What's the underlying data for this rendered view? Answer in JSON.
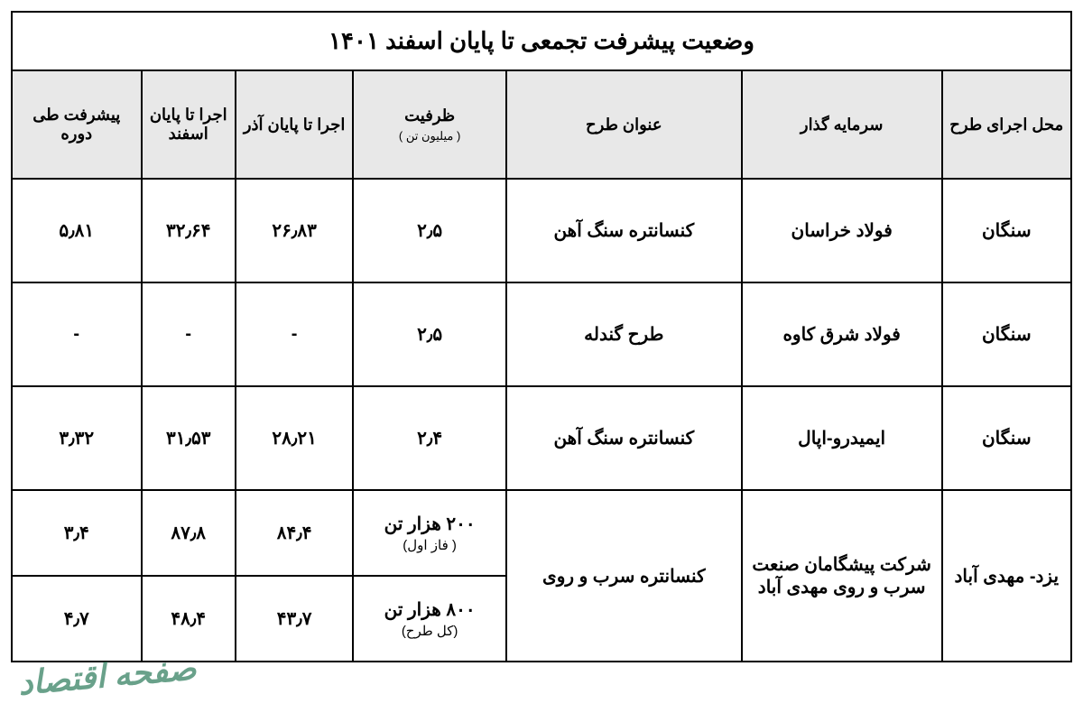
{
  "table": {
    "title": "وضعیت پیشرفت تجمعی تا پایان اسفند ۱۴۰۱",
    "headers": {
      "col1": "محل اجرای طرح",
      "col2": "سرمایه گذار",
      "col3": "عنوان طرح",
      "col4_main": "ظرفیت",
      "col4_sub": "( میلیون تن )",
      "col5": "اجرا تا پایان آذر",
      "col6": "اجرا تا پایان اسفند",
      "col7": "پیشرفت طی دوره"
    },
    "rows": [
      {
        "location": "سنگان",
        "investor": "فولاد خراسان",
        "project": "کنسانتره سنگ آهن",
        "capacity": "۲٫۵",
        "capacity_sub": "",
        "exec_azar": "۲۶٫۸۳",
        "exec_esfand": "۳۲٫۶۴",
        "progress": "۵٫۸۱"
      },
      {
        "location": "سنگان",
        "investor": "فولاد شرق کاوه",
        "project": "طرح گندله",
        "capacity": "۲٫۵",
        "capacity_sub": "",
        "exec_azar": "-",
        "exec_esfand": "-",
        "progress": "-"
      },
      {
        "location": "سنگان",
        "investor": "ایمیدرو-اپال",
        "project": "کنسانتره سنگ آهن",
        "capacity": "۲٫۴",
        "capacity_sub": "",
        "exec_azar": "۲۸٫۲۱",
        "exec_esfand": "۳۱٫۵۳",
        "progress": "۳٫۳۲"
      }
    ],
    "merged_row": {
      "location": "یزد- مهدی آباد",
      "investor": "شرکت پیشگامان صنعت سرب و روی مهدی آباد",
      "project": "کنسانتره سرب و روی",
      "sub1": {
        "capacity": "۲۰۰ هزار تن",
        "capacity_sub": "( فاز اول)",
        "exec_azar": "۸۴٫۴",
        "exec_esfand": "۸۷٫۸",
        "progress": "۳٫۴"
      },
      "sub2": {
        "capacity": "۸۰۰ هزار تن",
        "capacity_sub": "(کل طرح)",
        "exec_azar": "۴۳٫۷",
        "exec_esfand": "۴۸٫۴",
        "progress": "۴٫۷"
      }
    }
  },
  "watermark": "صفحه اقتصاد",
  "styling": {
    "border_color": "#000000",
    "header_bg": "#e8e8e8",
    "body_bg": "#ffffff",
    "watermark_color": "#2a7a5a",
    "title_fontsize": 26,
    "header_fontsize": 18,
    "cell_fontsize": 20
  }
}
